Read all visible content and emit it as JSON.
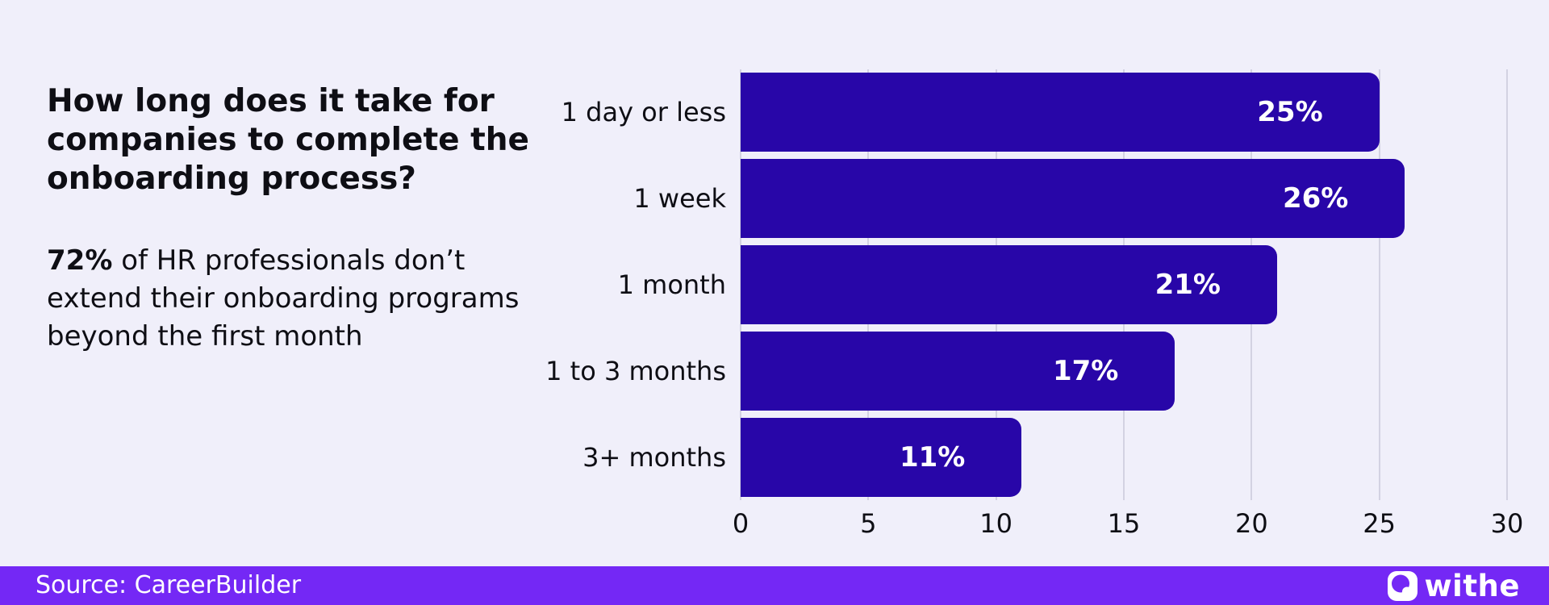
{
  "headline": {
    "title_lines": [
      "How long does it take for",
      "companies to complete the",
      "onboarding process?"
    ],
    "stat": "72%",
    "sub_line1_rest": " of HR professionals don’t",
    "sub_lines": [
      "extend their onboarding programs",
      "beyond the first month"
    ]
  },
  "chart_data": {
    "type": "bar",
    "orientation": "horizontal",
    "title": "How long does it take for companies to complete the onboarding process?",
    "xlabel": "",
    "ylabel": "",
    "categories": [
      "1 day or less",
      "1 week",
      "1 month",
      "1 to 3 months",
      "3+ months"
    ],
    "values": [
      25,
      26,
      21,
      17,
      11
    ],
    "value_labels": [
      "25%",
      "26%",
      "21%",
      "17%",
      "11%"
    ],
    "xlim": [
      0,
      30
    ],
    "x_ticks": [
      0,
      5,
      10,
      15,
      20,
      25,
      30
    ],
    "grid": true,
    "legend": false,
    "bar_color": "#2806a8",
    "value_label_color": "#ffffff"
  },
  "footer": {
    "source": "Source: CareerBuilder",
    "brand": "withe"
  },
  "colors": {
    "background": "#f0effa",
    "bar": "#2806a8",
    "accent_purple": "#7428f5",
    "text_dark": "#0e0e14",
    "grid": "#d3d2e2",
    "bar_label": "#ffffff"
  }
}
